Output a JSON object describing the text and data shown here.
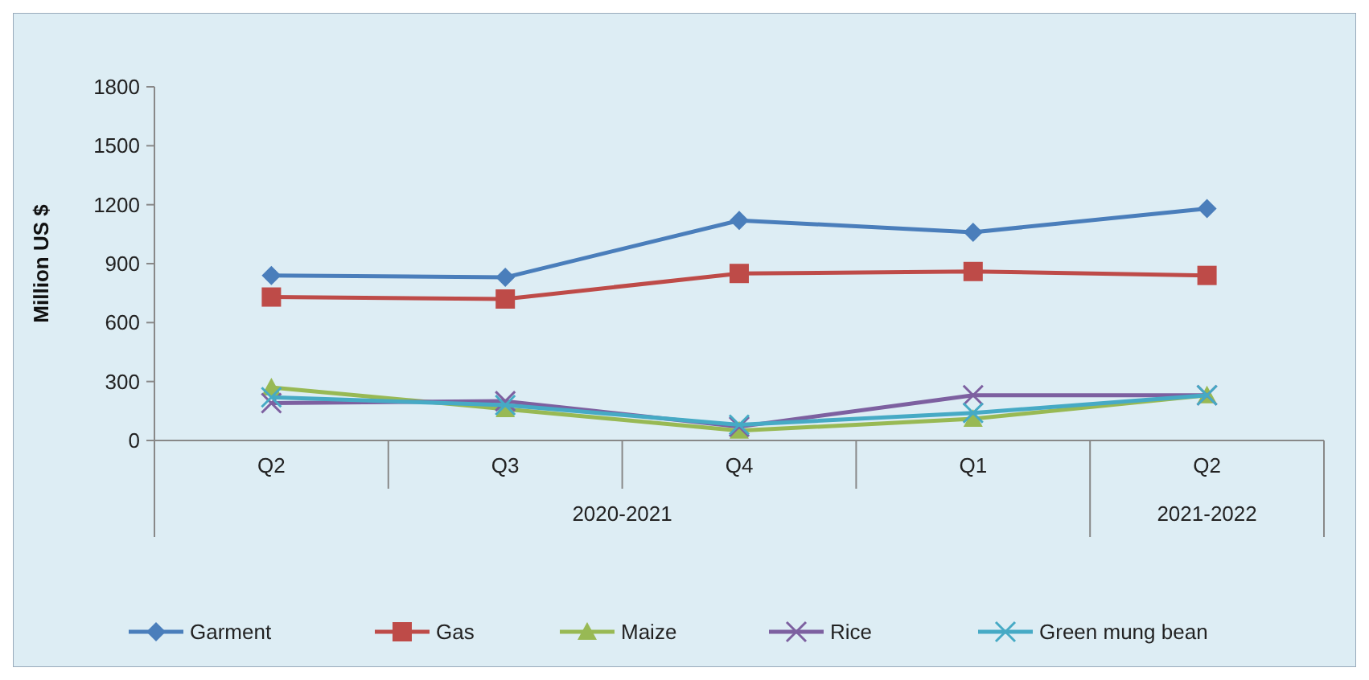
{
  "chart_data": {
    "type": "line",
    "ylabel": "Million US $",
    "categories": [
      "Q2",
      "Q3",
      "Q4",
      "Q1",
      "Q2"
    ],
    "ylim": [
      0,
      1800
    ],
    "yticks": [
      0,
      300,
      600,
      900,
      1200,
      1500,
      1800
    ],
    "legend": "bottom",
    "annotations": [
      "2020-2021",
      "2021-2022"
    ],
    "series": [
      {
        "name": "Garment",
        "color": "#4a7ebb",
        "marker": "diamond",
        "values": [
          840,
          830,
          1120,
          1060,
          1180
        ]
      },
      {
        "name": "Gas",
        "color": "#be4b48",
        "marker": "square",
        "values": [
          730,
          720,
          850,
          860,
          840
        ]
      },
      {
        "name": "Maize",
        "color": "#98b954",
        "marker": "triangle",
        "values": [
          270,
          160,
          50,
          110,
          230
        ]
      },
      {
        "name": "Rice",
        "color": "#7d60a0",
        "marker": "cross",
        "values": [
          190,
          200,
          70,
          230,
          230
        ]
      },
      {
        "name": "Green mung bean",
        "color": "#46aac5",
        "marker": "cross",
        "values": [
          220,
          180,
          80,
          140,
          230
        ]
      }
    ]
  }
}
